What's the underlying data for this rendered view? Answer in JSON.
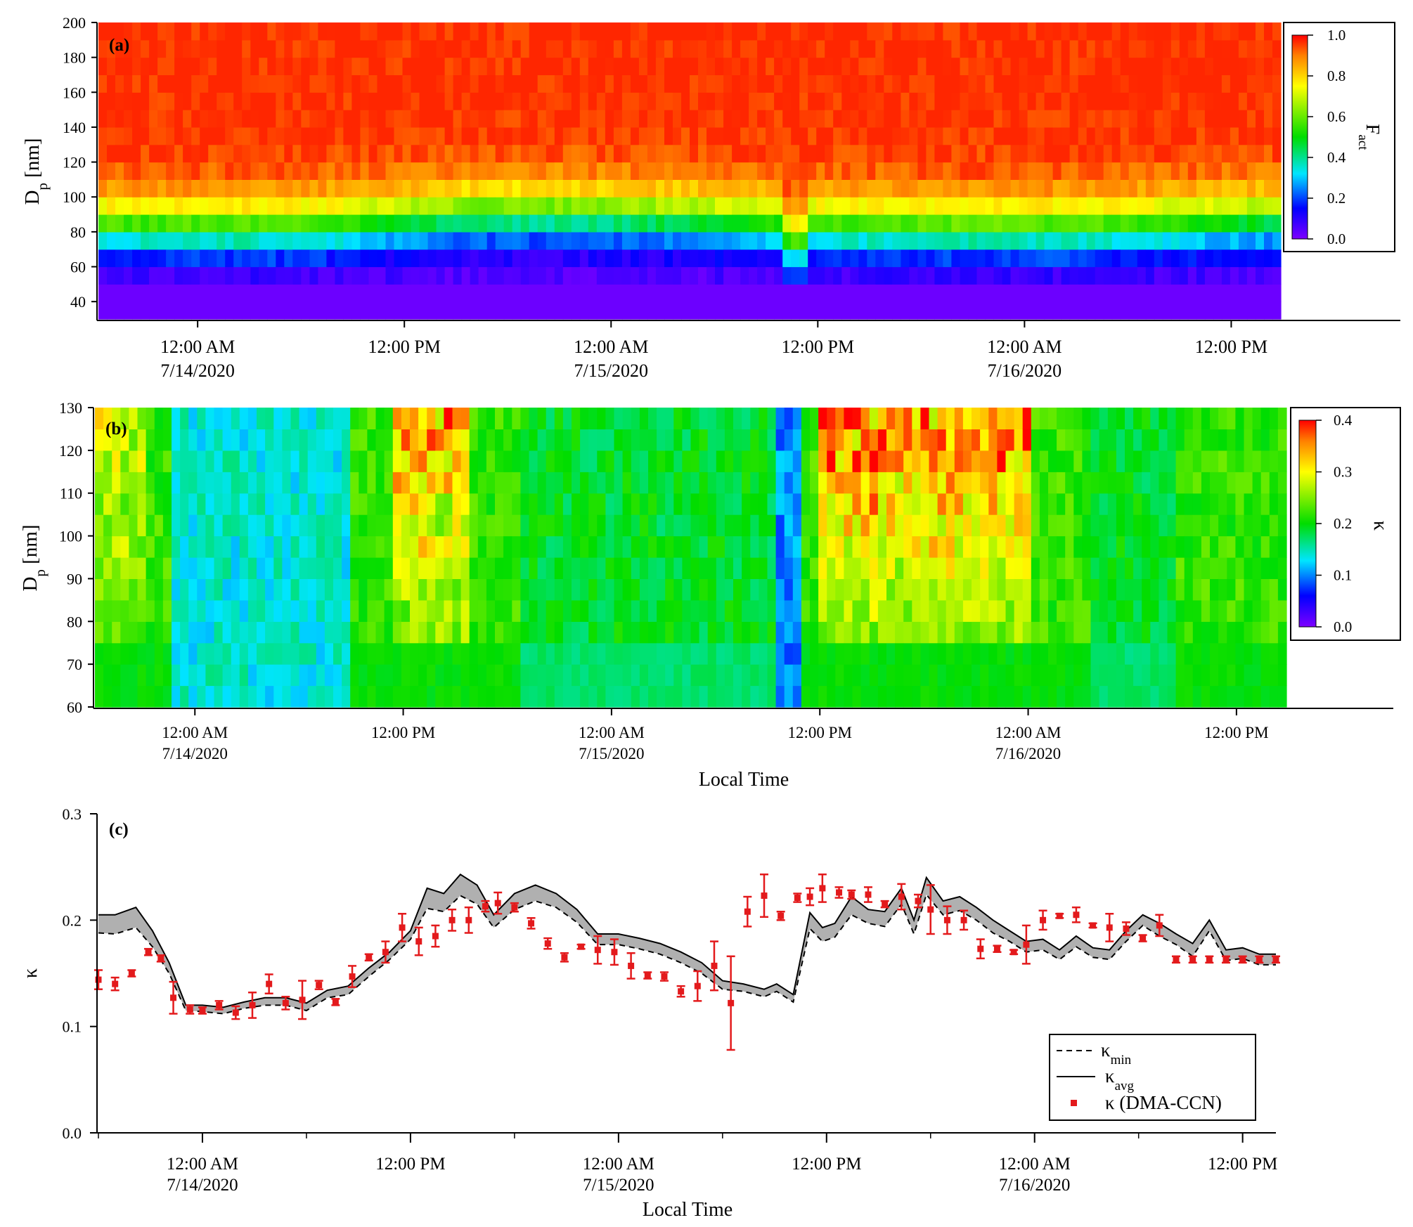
{
  "chart_data": [
    {
      "id": "a",
      "type": "heatmap",
      "panel_label": "(a)",
      "ylabel": "D",
      "ylabel_sub": "p",
      "ylabel_unit": " [nm]",
      "ylim": [
        30,
        200
      ],
      "yticks": [
        "200",
        "180",
        "160",
        "140",
        "120",
        "100",
        "80",
        "60",
        "40"
      ],
      "ytick_values": [
        200,
        180,
        160,
        140,
        120,
        100,
        80,
        60,
        40
      ],
      "xticks": [
        {
          "t": 0.0,
          "line1": "12:00 AM",
          "line2": "7/14/2020"
        },
        {
          "t": 0.5,
          "line1": "12:00 PM",
          "line2": ""
        },
        {
          "t": 1.0,
          "line1": "12:00 AM",
          "line2": "7/15/2020"
        },
        {
          "t": 1.5,
          "line1": "12:00 PM",
          "line2": ""
        },
        {
          "t": 2.0,
          "line1": "12:00 AM",
          "line2": "7/16/2020"
        },
        {
          "t": 2.5,
          "line1": "12:00 PM",
          "line2": ""
        }
      ],
      "xlim_days": [
        -0.24,
        2.62
      ],
      "colorbar": {
        "label": "F",
        "label_sub": "act",
        "range": [
          0,
          1.0
        ],
        "ticks": [
          "1.0",
          "0.8",
          "0.6",
          "0.4",
          "0.2",
          "0.0"
        ],
        "tick_values": [
          1.0,
          0.8,
          0.6,
          0.4,
          0.2,
          0.0
        ]
      },
      "description_of_values": "F_act rises from ~0 at 30-55 nm to ~0.95 above 130 nm; 50% activation diameter ~85-90 nm, dipping near 12:00 PM 7/15"
    },
    {
      "id": "b",
      "type": "heatmap",
      "panel_label": "(b)",
      "ylabel": "D",
      "ylabel_sub": "p",
      "ylabel_unit": " [nm]",
      "ylim": [
        60,
        130
      ],
      "yticks": [
        "130",
        "120",
        "110",
        "100",
        "90",
        "80",
        "70",
        "60"
      ],
      "ytick_values": [
        130,
        120,
        110,
        100,
        90,
        80,
        70,
        60
      ],
      "xticks": [
        {
          "t": 0.0,
          "line1": "12:00 AM",
          "line2": "7/14/2020"
        },
        {
          "t": 0.5,
          "line1": "12:00 PM",
          "line2": ""
        },
        {
          "t": 1.0,
          "line1": "12:00 AM",
          "line2": "7/15/2020"
        },
        {
          "t": 1.5,
          "line1": "12:00 PM",
          "line2": ""
        },
        {
          "t": 2.0,
          "line1": "12:00 AM",
          "line2": "7/16/2020"
        },
        {
          "t": 2.5,
          "line1": "12:00 PM",
          "line2": ""
        }
      ],
      "xlim_days": [
        -0.24,
        2.62
      ],
      "xlabel": "Local Time",
      "colorbar": {
        "label": "κ",
        "range": [
          0,
          0.4
        ],
        "ticks": [
          "0.4",
          "0.3",
          "0.2",
          "0.1",
          "0.0"
        ],
        "tick_values": [
          0.4,
          0.3,
          0.2,
          0.1,
          0.0
        ]
      },
      "description_of_values": "κ ~0.12-0.18 early 7/14, ~0.22 elsewhere, 0.3-0.4 at larger sizes after 12:00 PM 7/14 and 7/15 afternoon"
    },
    {
      "id": "c",
      "type": "line",
      "panel_label": "(c)",
      "ylabel": "κ",
      "ylim": [
        0,
        0.3
      ],
      "yticks": [
        "0.3",
        "0.2",
        "0.1",
        "0.0"
      ],
      "ytick_values": [
        0.3,
        0.2,
        0.1,
        0.0
      ],
      "xlabel": "Local Time",
      "xlim_days": [
        -0.25,
        2.58
      ],
      "xticks": [
        {
          "t": 0.0,
          "line1": "12:00 AM",
          "line2": "7/14/2020"
        },
        {
          "t": 0.5,
          "line1": "12:00 PM",
          "line2": ""
        },
        {
          "t": 1.0,
          "line1": "12:00 AM",
          "line2": "7/15/2020"
        },
        {
          "t": 1.5,
          "line1": "12:00 PM",
          "line2": ""
        },
        {
          "t": 2.0,
          "line1": "12:00 AM",
          "line2": "7/16/2020"
        },
        {
          "t": 2.5,
          "line1": "12:00 PM",
          "line2": ""
        }
      ],
      "legend": [
        {
          "style": "dashed",
          "label": "κ",
          "sub": "min"
        },
        {
          "style": "solid",
          "label": "κ",
          "sub": "avg"
        },
        {
          "style": "marker",
          "label": "κ (DMA-CCN)",
          "sub": ""
        }
      ],
      "legend_position": "bottom-right",
      "kappa_avg": {
        "t": [
          -0.25,
          -0.21,
          -0.16,
          -0.12,
          -0.08,
          -0.04,
          0.0,
          0.05,
          0.1,
          0.15,
          0.2,
          0.25,
          0.3,
          0.35,
          0.4,
          0.45,
          0.5,
          0.54,
          0.58,
          0.62,
          0.66,
          0.7,
          0.75,
          0.8,
          0.85,
          0.9,
          0.95,
          1.0,
          1.05,
          1.1,
          1.15,
          1.2,
          1.25,
          1.3,
          1.35,
          1.38,
          1.42,
          1.46,
          1.49,
          1.52,
          1.56,
          1.6,
          1.64,
          1.68,
          1.71,
          1.74,
          1.78,
          1.82,
          1.86,
          1.9,
          1.94,
          1.98,
          2.02,
          2.06,
          2.1,
          2.14,
          2.18,
          2.22,
          2.26,
          2.3,
          2.34,
          2.38,
          2.42,
          2.46,
          2.5,
          2.54,
          2.58
        ],
        "v": [
          0.205,
          0.205,
          0.212,
          0.19,
          0.16,
          0.12,
          0.12,
          0.118,
          0.123,
          0.127,
          0.127,
          0.122,
          0.134,
          0.138,
          0.155,
          0.17,
          0.19,
          0.23,
          0.225,
          0.243,
          0.233,
          0.205,
          0.225,
          0.233,
          0.225,
          0.21,
          0.187,
          0.187,
          0.183,
          0.178,
          0.17,
          0.16,
          0.143,
          0.14,
          0.135,
          0.14,
          0.13,
          0.207,
          0.193,
          0.197,
          0.222,
          0.21,
          0.208,
          0.23,
          0.2,
          0.24,
          0.218,
          0.222,
          0.212,
          0.2,
          0.19,
          0.18,
          0.182,
          0.172,
          0.185,
          0.174,
          0.172,
          0.19,
          0.205,
          0.197,
          0.187,
          0.178,
          0.2,
          0.172,
          0.174,
          0.168,
          0.168
        ]
      },
      "kappa_min": {
        "t": [
          -0.25,
          -0.21,
          -0.16,
          -0.12,
          -0.08,
          -0.04,
          0.0,
          0.05,
          0.1,
          0.15,
          0.2,
          0.25,
          0.3,
          0.35,
          0.4,
          0.45,
          0.5,
          0.54,
          0.58,
          0.62,
          0.66,
          0.7,
          0.75,
          0.8,
          0.85,
          0.9,
          0.95,
          1.0,
          1.05,
          1.1,
          1.15,
          1.2,
          1.25,
          1.3,
          1.35,
          1.38,
          1.42,
          1.46,
          1.49,
          1.52,
          1.56,
          1.6,
          1.64,
          1.68,
          1.71,
          1.74,
          1.78,
          1.82,
          1.86,
          1.9,
          1.94,
          1.98,
          2.02,
          2.06,
          2.1,
          2.14,
          2.18,
          2.22,
          2.26,
          2.3,
          2.34,
          2.38,
          2.42,
          2.46,
          2.5,
          2.54,
          2.58
        ],
        "v": [
          0.188,
          0.187,
          0.193,
          0.175,
          0.15,
          0.115,
          0.114,
          0.112,
          0.117,
          0.12,
          0.12,
          0.115,
          0.127,
          0.13,
          0.147,
          0.163,
          0.182,
          0.211,
          0.208,
          0.223,
          0.215,
          0.193,
          0.21,
          0.218,
          0.212,
          0.198,
          0.177,
          0.177,
          0.173,
          0.168,
          0.16,
          0.15,
          0.135,
          0.133,
          0.128,
          0.133,
          0.123,
          0.192,
          0.18,
          0.184,
          0.205,
          0.197,
          0.194,
          0.215,
          0.187,
          0.224,
          0.205,
          0.209,
          0.2,
          0.188,
          0.18,
          0.17,
          0.172,
          0.163,
          0.175,
          0.165,
          0.163,
          0.18,
          0.195,
          0.185,
          0.177,
          0.166,
          0.19,
          0.162,
          0.164,
          0.158,
          0.158
        ]
      },
      "dma_ccn": {
        "t": [
          -0.25,
          -0.21,
          -0.17,
          -0.13,
          -0.1,
          -0.07,
          -0.03,
          0.0,
          0.04,
          0.08,
          0.12,
          0.16,
          0.2,
          0.24,
          0.28,
          0.32,
          0.36,
          0.4,
          0.44,
          0.48,
          0.52,
          0.56,
          0.6,
          0.64,
          0.68,
          0.71,
          0.75,
          0.79,
          0.83,
          0.87,
          0.91,
          0.95,
          0.99,
          1.03,
          1.07,
          1.11,
          1.15,
          1.19,
          1.23,
          1.27,
          1.31,
          1.35,
          1.39,
          1.43,
          1.46,
          1.49,
          1.53,
          1.56,
          1.6,
          1.64,
          1.68,
          1.72,
          1.75,
          1.79,
          1.83,
          1.87,
          1.91,
          1.95,
          1.98,
          2.02,
          2.06,
          2.1,
          2.14,
          2.18,
          2.22,
          2.26,
          2.3,
          2.34,
          2.38,
          2.42,
          2.46,
          2.5,
          2.54,
          2.58
        ],
        "v": [
          0.144,
          0.14,
          0.15,
          0.17,
          0.164,
          0.127,
          0.116,
          0.115,
          0.12,
          0.113,
          0.12,
          0.14,
          0.122,
          0.125,
          0.139,
          0.123,
          0.147,
          0.165,
          0.17,
          0.193,
          0.18,
          0.185,
          0.2,
          0.2,
          0.213,
          0.216,
          0.212,
          0.197,
          0.178,
          0.165,
          0.175,
          0.172,
          0.17,
          0.157,
          0.148,
          0.147,
          0.133,
          0.138,
          0.157,
          0.122,
          0.208,
          0.223,
          0.204,
          0.221,
          0.222,
          0.23,
          0.226,
          0.224,
          0.224,
          0.215,
          0.222,
          0.218,
          0.21,
          0.2,
          0.2,
          0.173,
          0.173,
          0.17,
          0.177,
          0.2,
          0.204,
          0.205,
          0.195,
          0.193,
          0.192,
          0.183,
          0.195,
          0.163,
          0.163,
          0.163,
          0.163,
          0.163,
          0.163,
          0.163
        ],
        "err": [
          0.009,
          0.006,
          0.003,
          0.003,
          0.003,
          0.015,
          0.004,
          0.003,
          0.004,
          0.006,
          0.012,
          0.009,
          0.006,
          0.018,
          0.004,
          0.003,
          0.01,
          0.003,
          0.01,
          0.013,
          0.013,
          0.01,
          0.01,
          0.012,
          0.005,
          0.01,
          0.004,
          0.005,
          0.005,
          0.004,
          0.002,
          0.013,
          0.012,
          0.012,
          0.003,
          0.004,
          0.005,
          0.014,
          0.023,
          0.044,
          0.014,
          0.02,
          0.004,
          0.004,
          0.008,
          0.013,
          0.005,
          0.004,
          0.007,
          0.003,
          0.012,
          0.006,
          0.023,
          0.013,
          0.009,
          0.009,
          0.003,
          0.002,
          0.018,
          0.009,
          0.002,
          0.007,
          0.002,
          0.013,
          0.006,
          0.003,
          0.01,
          0.003,
          0.003,
          0.003,
          0.003,
          0.003,
          0.003,
          0.003
        ]
      }
    }
  ]
}
